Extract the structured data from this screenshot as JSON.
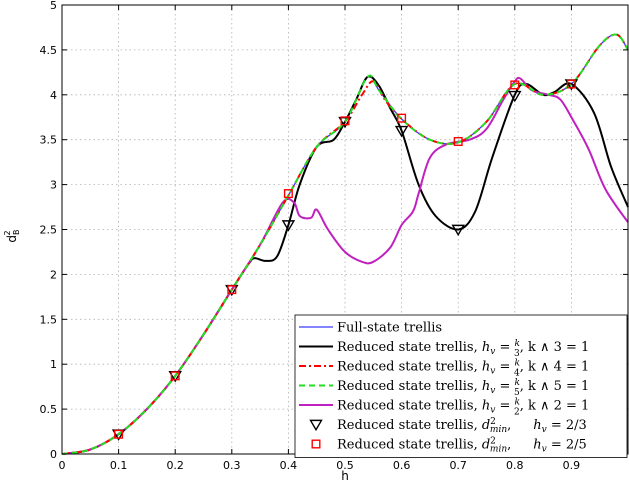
{
  "chart_data": {
    "type": "line",
    "xlabel": "h",
    "ylabel_main": "d",
    "ylabel_sup": "2",
    "ylabel_sub": "B",
    "xlim": [
      0,
      1
    ],
    "ylim": [
      0,
      5
    ],
    "grid": true,
    "xticks": [
      "0",
      "0.1",
      "0.2",
      "0.3",
      "0.4",
      "0.5",
      "0.6",
      "0.7",
      "0.8",
      "0.9"
    ],
    "yticks": [
      "0",
      "0.5",
      "1",
      "1.5",
      "2",
      "2.5",
      "3",
      "3.5",
      "4",
      "4.5",
      "5"
    ],
    "legend_position": "bottom-right",
    "series": [
      {
        "name": "Full-state trellis",
        "color": "#3b3bff",
        "style": "solid",
        "points": [
          [
            0,
            0
          ],
          [
            0.05,
            0.05
          ],
          [
            0.1,
            0.22
          ],
          [
            0.15,
            0.5
          ],
          [
            0.2,
            0.87
          ],
          [
            0.25,
            1.33
          ],
          [
            0.3,
            1.83
          ],
          [
            0.35,
            2.33
          ],
          [
            0.4,
            2.88
          ],
          [
            0.45,
            3.42
          ],
          [
            0.5,
            3.7
          ],
          [
            0.54,
            4.2
          ],
          [
            0.56,
            4.05
          ],
          [
            0.6,
            3.73
          ],
          [
            0.65,
            3.5
          ],
          [
            0.7,
            3.47
          ],
          [
            0.75,
            3.7
          ],
          [
            0.8,
            4.12
          ],
          [
            0.85,
            4.0
          ],
          [
            0.9,
            4.12
          ],
          [
            0.95,
            4.55
          ],
          [
            0.98,
            4.67
          ],
          [
            1.0,
            4.5
          ]
        ]
      },
      {
        "name": "Reduced state trellis, h_v = k/3, k ∧ 3 = 1",
        "legend_parts": [
          "Reduced state trellis, ",
          "h",
          "v",
          " = ",
          "k",
          "3",
          ",  k ∧ 3 = 1"
        ],
        "color": "#000000",
        "style": "solid",
        "points": [
          [
            0,
            0
          ],
          [
            0.05,
            0.05
          ],
          [
            0.1,
            0.22
          ],
          [
            0.15,
            0.5
          ],
          [
            0.2,
            0.87
          ],
          [
            0.25,
            1.33
          ],
          [
            0.3,
            1.83
          ],
          [
            0.33,
            2.12
          ],
          [
            0.34,
            2.18
          ],
          [
            0.36,
            2.15
          ],
          [
            0.38,
            2.2
          ],
          [
            0.4,
            2.55
          ],
          [
            0.42,
            3.0
          ],
          [
            0.45,
            3.42
          ],
          [
            0.48,
            3.5
          ],
          [
            0.5,
            3.7
          ],
          [
            0.52,
            3.95
          ],
          [
            0.54,
            4.2
          ],
          [
            0.56,
            4.1
          ],
          [
            0.58,
            3.85
          ],
          [
            0.6,
            3.6
          ],
          [
            0.63,
            3.0
          ],
          [
            0.66,
            2.65
          ],
          [
            0.7,
            2.5
          ],
          [
            0.73,
            2.7
          ],
          [
            0.76,
            3.3
          ],
          [
            0.8,
            4.0
          ],
          [
            0.82,
            4.12
          ],
          [
            0.85,
            4.0
          ],
          [
            0.87,
            4.03
          ],
          [
            0.9,
            4.12
          ],
          [
            0.94,
            3.8
          ],
          [
            0.97,
            3.2
          ],
          [
            1.0,
            2.75
          ]
        ]
      },
      {
        "name": "Reduced state trellis, h_v = k/4, k ∧ 4 = 1",
        "legend_parts": [
          "Reduced state trellis, ",
          "h",
          "v",
          " = ",
          "k",
          "4",
          ",  k ∧ 4 = 1"
        ],
        "color": "#ff0000",
        "style": "dashdot",
        "points": [
          [
            0,
            0
          ],
          [
            0.05,
            0.05
          ],
          [
            0.1,
            0.22
          ],
          [
            0.15,
            0.5
          ],
          [
            0.2,
            0.87
          ],
          [
            0.25,
            1.33
          ],
          [
            0.3,
            1.83
          ],
          [
            0.35,
            2.33
          ],
          [
            0.4,
            2.88
          ],
          [
            0.45,
            3.42
          ],
          [
            0.5,
            3.7
          ],
          [
            0.53,
            4.0
          ],
          [
            0.55,
            4.15
          ],
          [
            0.57,
            3.95
          ],
          [
            0.6,
            3.73
          ],
          [
            0.65,
            3.5
          ],
          [
            0.7,
            3.47
          ],
          [
            0.75,
            3.7
          ],
          [
            0.8,
            4.12
          ],
          [
            0.85,
            4.0
          ],
          [
            0.9,
            4.12
          ],
          [
            0.95,
            4.55
          ],
          [
            0.98,
            4.67
          ],
          [
            1.0,
            4.5
          ]
        ]
      },
      {
        "name": "Reduced state trellis, h_v = k/5, k ∧ 5 = 1",
        "legend_parts": [
          "Reduced state trellis, ",
          "h",
          "v",
          " = ",
          "k",
          "5",
          ",  k ∧ 5 = 1"
        ],
        "color": "#22dd22",
        "style": "dashed",
        "points": [
          [
            0,
            0
          ],
          [
            0.05,
            0.05
          ],
          [
            0.1,
            0.22
          ],
          [
            0.15,
            0.5
          ],
          [
            0.2,
            0.87
          ],
          [
            0.25,
            1.33
          ],
          [
            0.3,
            1.83
          ],
          [
            0.35,
            2.33
          ],
          [
            0.4,
            2.88
          ],
          [
            0.45,
            3.42
          ],
          [
            0.5,
            3.7
          ],
          [
            0.54,
            4.2
          ],
          [
            0.56,
            4.05
          ],
          [
            0.6,
            3.73
          ],
          [
            0.65,
            3.5
          ],
          [
            0.7,
            3.47
          ],
          [
            0.75,
            3.7
          ],
          [
            0.8,
            4.12
          ],
          [
            0.85,
            4.0
          ],
          [
            0.9,
            4.12
          ],
          [
            0.95,
            4.55
          ],
          [
            0.98,
            4.67
          ],
          [
            1.0,
            4.5
          ]
        ]
      },
      {
        "name": "Reduced state trellis, h_v = k/2, k ∧ 2 = 1",
        "legend_parts": [
          "Reduced state trellis,  ",
          "h",
          "v",
          " = ",
          "k",
          "2",
          ",  k ∧ 2 = 1"
        ],
        "color": "#c020c0",
        "style": "solid",
        "points": [
          [
            0,
            0
          ],
          [
            0.05,
            0.05
          ],
          [
            0.1,
            0.22
          ],
          [
            0.15,
            0.5
          ],
          [
            0.2,
            0.87
          ],
          [
            0.25,
            1.33
          ],
          [
            0.3,
            1.83
          ],
          [
            0.35,
            2.33
          ],
          [
            0.39,
            2.8
          ],
          [
            0.41,
            2.8
          ],
          [
            0.42,
            2.65
          ],
          [
            0.44,
            2.63
          ],
          [
            0.45,
            2.72
          ],
          [
            0.47,
            2.5
          ],
          [
            0.5,
            2.25
          ],
          [
            0.53,
            2.14
          ],
          [
            0.55,
            2.14
          ],
          [
            0.58,
            2.3
          ],
          [
            0.6,
            2.55
          ],
          [
            0.62,
            2.7
          ],
          [
            0.63,
            2.9
          ],
          [
            0.65,
            3.3
          ],
          [
            0.68,
            3.45
          ],
          [
            0.72,
            3.5
          ],
          [
            0.75,
            3.62
          ],
          [
            0.78,
            3.95
          ],
          [
            0.8,
            4.15
          ],
          [
            0.81,
            4.18
          ],
          [
            0.83,
            4.05
          ],
          [
            0.86,
            4.0
          ],
          [
            0.88,
            3.95
          ],
          [
            0.9,
            3.75
          ],
          [
            0.93,
            3.4
          ],
          [
            0.96,
            2.95
          ],
          [
            1.0,
            2.58
          ]
        ]
      }
    ],
    "markers": [
      {
        "name": "Reduced state trellis, d²min,  h_v = 2/3",
        "legend_parts": [
          "Reduced state trellis, ",
          "d",
          "2",
          "min",
          ",",
          "h",
          "v",
          " = 2/3"
        ],
        "shape": "triangle-down",
        "color": "#000000",
        "points": [
          [
            0.1,
            0.22
          ],
          [
            0.2,
            0.87
          ],
          [
            0.3,
            1.83
          ],
          [
            0.4,
            2.55
          ],
          [
            0.5,
            3.7
          ],
          [
            0.6,
            3.6
          ],
          [
            0.7,
            2.5
          ],
          [
            0.8,
            3.99
          ],
          [
            0.9,
            4.12
          ]
        ]
      },
      {
        "name": "Reduced state trellis, d²min,  h_v = 2/5",
        "legend_parts": [
          "Reduced state trellis, ",
          "d",
          "2",
          "min",
          ",",
          "h",
          "v",
          " = 2/5"
        ],
        "shape": "square",
        "color": "#ff0000",
        "points": [
          [
            0.1,
            0.22
          ],
          [
            0.2,
            0.87
          ],
          [
            0.3,
            1.83
          ],
          [
            0.4,
            2.9
          ],
          [
            0.5,
            3.71
          ],
          [
            0.6,
            3.74
          ],
          [
            0.7,
            3.48
          ],
          [
            0.8,
            4.11
          ],
          [
            0.9,
            4.12
          ]
        ]
      }
    ]
  }
}
